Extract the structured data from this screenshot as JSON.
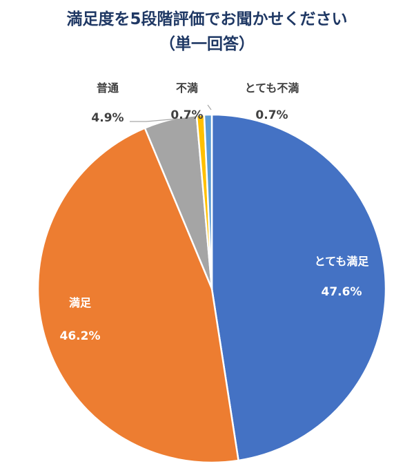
{
  "title": {
    "line1": "満足度を5段階評価でお聞かせください",
    "line2": "（単一回答）"
  },
  "chart_data": {
    "type": "pie",
    "title": "満足度を5段階評価でお聞かせください（単一回答）",
    "categories": [
      "とても満足",
      "満足",
      "普通",
      "不満",
      "とても不満"
    ],
    "values": [
      47.6,
      46.2,
      4.9,
      0.7,
      0.7
    ],
    "value_labels": [
      "47.6%",
      "46.2%",
      "4.9%",
      "0.7%",
      "0.7%"
    ],
    "colors": [
      "#4472c4",
      "#ed7d31",
      "#a5a5a5",
      "#ffc000",
      "#5b9bd5"
    ],
    "start_angle": "12 o'clock",
    "direction": "clockwise",
    "legend": "none"
  }
}
